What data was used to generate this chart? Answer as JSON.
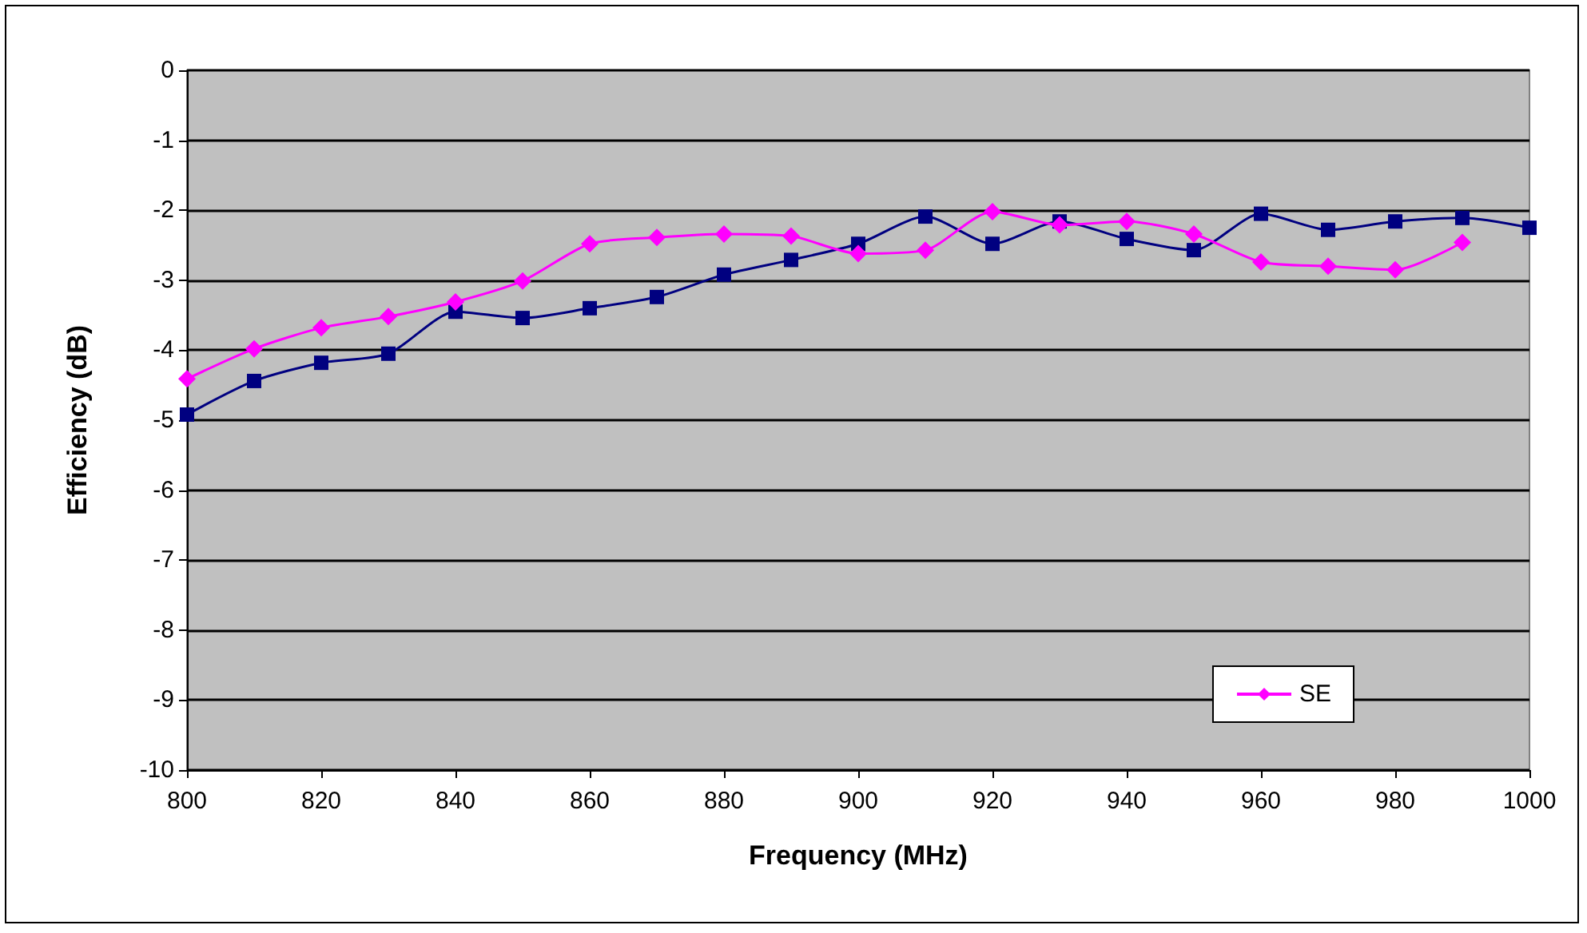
{
  "chart_data": {
    "type": "line",
    "xlabel": "Frequency (MHz)",
    "ylabel": "Efficiency (dB)",
    "x": [
      800,
      810,
      820,
      830,
      840,
      850,
      860,
      870,
      880,
      890,
      900,
      910,
      920,
      930,
      940,
      950,
      960,
      970,
      980,
      990,
      1000
    ],
    "series": [
      {
        "name": "SE",
        "color": "#ff00ff",
        "marker": "diamond",
        "values": [
          -4.41,
          -3.98,
          -3.68,
          -3.52,
          -3.31,
          -3.01,
          -2.48,
          -2.39,
          -2.34,
          -2.37,
          -2.62,
          -2.57,
          -2.02,
          -2.21,
          -2.16,
          -2.34,
          -2.74,
          -2.8,
          -2.85,
          -2.46,
          null
        ]
      },
      {
        "color": "#000080",
        "marker": "square",
        "values": [
          -4.92,
          -4.44,
          -4.18,
          -4.05,
          -3.45,
          -3.54,
          -3.4,
          -3.24,
          -2.92,
          -2.71,
          -2.48,
          -2.09,
          -2.48,
          -2.16,
          -2.41,
          -2.57,
          -2.05,
          -2.28,
          -2.16,
          -2.11,
          -2.25
        ]
      }
    ],
    "xlim": [
      800,
      1000
    ],
    "xticks": [
      800,
      820,
      840,
      860,
      880,
      900,
      920,
      940,
      960,
      980,
      1000
    ],
    "ylim": [
      -10,
      0
    ],
    "yticks": [
      -10,
      -9,
      -8,
      -7,
      -6,
      -5,
      -4,
      -3,
      -2,
      -1,
      0
    ],
    "grid": "y",
    "legend": "bottom right",
    "line_style": "solid"
  }
}
